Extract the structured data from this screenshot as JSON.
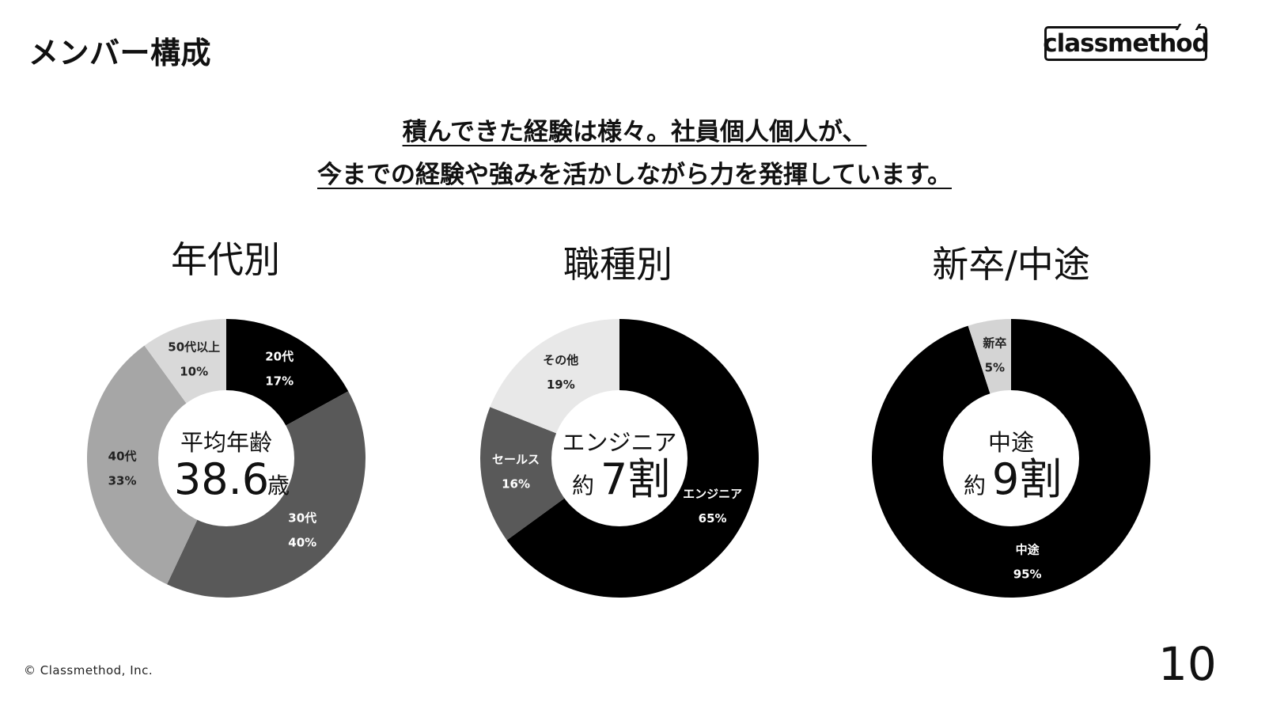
{
  "page": {
    "title": "メンバー構成",
    "logo_text": "classmethod",
    "headline_line1": "積んできた経験は様々。社員個人個人が、",
    "headline_line2": "今までの経験や強みを活かしながら力を発揮しています。",
    "copyright": "© Classmethod, Inc.",
    "page_number": "10"
  },
  "chart_data": [
    {
      "type": "pie",
      "title": "年代別",
      "center_label": "平均年齢",
      "center_value": "38.6",
      "center_unit": "歳",
      "slices": [
        {
          "label": "20代",
          "value": 17,
          "value_text": "17%",
          "color": "#000000"
        },
        {
          "label": "30代",
          "value": 40,
          "value_text": "40%",
          "color": "#595959"
        },
        {
          "label": "40代",
          "value": 33,
          "value_text": "33%",
          "color": "#a6a6a6"
        },
        {
          "label": "50代以上",
          "value": 10,
          "value_text": "10%",
          "color": "#d9d9d9"
        }
      ]
    },
    {
      "type": "pie",
      "title": "職種別",
      "center_label": "エンジニア",
      "center_prefix": "約",
      "center_value": "7割",
      "slices": [
        {
          "label": "エンジニア",
          "value": 65,
          "value_text": "65%",
          "color": "#000000"
        },
        {
          "label": "セールス",
          "value": 16,
          "value_text": "16%",
          "color": "#595959"
        },
        {
          "label": "その他",
          "value": 19,
          "value_text": "19%",
          "color": "#e8e8e8"
        }
      ]
    },
    {
      "type": "pie",
      "title": "新卒/中途",
      "center_label": "中途",
      "center_prefix": "約",
      "center_value": "9割",
      "slices": [
        {
          "label": "中途",
          "value": 95,
          "value_text": "95%",
          "color": "#000000"
        },
        {
          "label": "新卒",
          "value": 5,
          "value_text": "5%",
          "color": "#d4d4d4"
        }
      ]
    }
  ]
}
